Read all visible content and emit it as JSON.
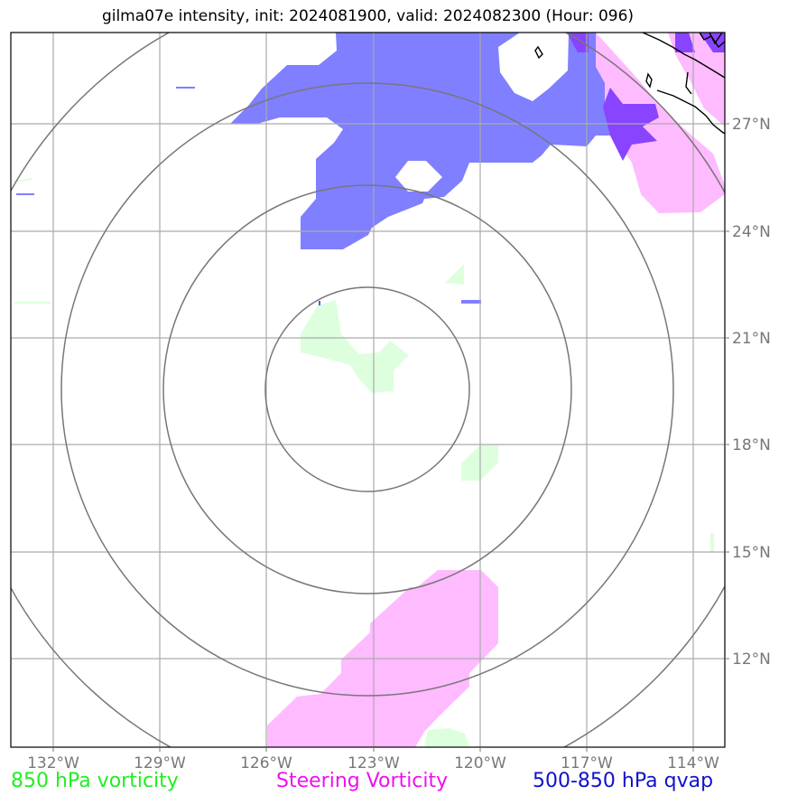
{
  "title": "gilma07e intensity, init: 2024081900, valid: 2024082300 (Hour: 096)",
  "map": {
    "lon_ticks": [
      "132°W",
      "129°W",
      "126°W",
      "123°W",
      "120°W",
      "117°W",
      "114°W"
    ],
    "lat_ticks": [
      "27°N",
      "24°N",
      "21°N",
      "18°N",
      "15°N",
      "12°N"
    ],
    "range_rings": 4,
    "colors": {
      "vorticity_850": "#ddffdd",
      "steering_vorticity": "#ffbbff",
      "qvap": "#7f7fff",
      "overlap": "#8844ff",
      "ring": "#777777",
      "grid": "#aaaaaa",
      "coast": "#000000"
    }
  },
  "legend": {
    "green": "850 hPa vorticity",
    "magenta": "Steering Vorticity",
    "blue": "500-850 hPa qvap"
  }
}
